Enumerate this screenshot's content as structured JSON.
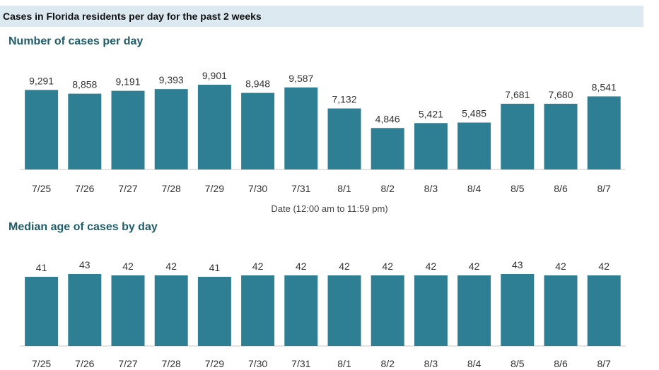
{
  "header": {
    "title": "Cases in Florida residents per day for the past 2 weeks"
  },
  "chart_data": [
    {
      "type": "bar",
      "title": "Number of cases per day",
      "xlabel": "Date (12:00 am to 11:59 pm)",
      "ylabel": "",
      "categories": [
        "7/25",
        "7/26",
        "7/27",
        "7/28",
        "7/29",
        "7/30",
        "7/31",
        "8/1",
        "8/2",
        "8/3",
        "8/4",
        "8/5",
        "8/6",
        "8/7"
      ],
      "values": [
        9291,
        8858,
        9191,
        9393,
        9901,
        8948,
        9587,
        7132,
        4846,
        5421,
        5485,
        7681,
        7680,
        8541
      ],
      "value_labels": [
        "9,291",
        "8,858",
        "9,191",
        "9,393",
        "9,901",
        "8,948",
        "9,587",
        "7,132",
        "4,846",
        "5,421",
        "5,485",
        "7,681",
        "7,680",
        "8,541"
      ],
      "ylim": [
        0,
        9901
      ],
      "color": "#2e7f93"
    },
    {
      "type": "bar",
      "title": "Median age of cases by day",
      "xlabel": "",
      "ylabel": "",
      "categories": [
        "7/25",
        "7/26",
        "7/27",
        "7/28",
        "7/29",
        "7/30",
        "7/31",
        "8/1",
        "8/2",
        "8/3",
        "8/4",
        "8/5",
        "8/6",
        "8/7"
      ],
      "values": [
        41,
        43,
        42,
        42,
        41,
        42,
        42,
        42,
        42,
        42,
        42,
        43,
        42,
        42
      ],
      "value_labels": [
        "41",
        "43",
        "42",
        "42",
        "41",
        "42",
        "42",
        "42",
        "42",
        "42",
        "42",
        "43",
        "42",
        "42"
      ],
      "ylim": [
        0,
        43
      ],
      "color": "#2e7f93"
    }
  ]
}
